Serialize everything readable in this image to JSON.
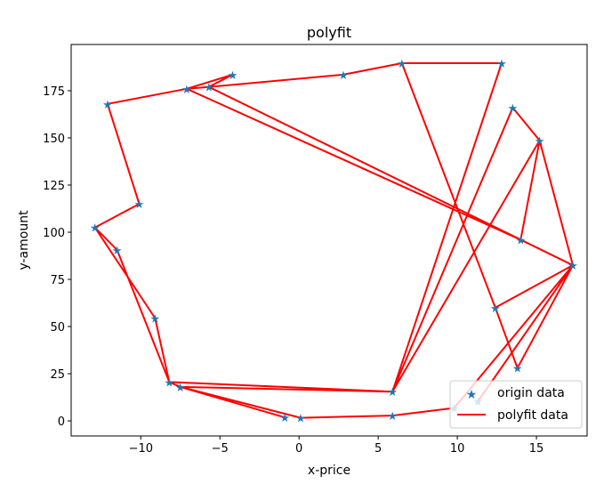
{
  "chart_data": {
    "type": "line",
    "title": "polyfit",
    "xlabel": "x-price",
    "ylabel": "y-amount",
    "xlim": [
      -14.4,
      18.2
    ],
    "ylim": [
      -8,
      199.5
    ],
    "xticks": [
      -10,
      -5,
      0,
      5,
      10,
      15
    ],
    "yticks": [
      0,
      25,
      50,
      75,
      100,
      125,
      150,
      175
    ],
    "xtick_labels": [
      "−10",
      "−5",
      "0",
      "5",
      "10",
      "15"
    ],
    "ytick_labels": [
      "0",
      "25",
      "50",
      "75",
      "100",
      "125",
      "150",
      "175"
    ],
    "grid": false,
    "legend": {
      "placement": "bottom-right",
      "entries": [
        "origin data",
        "polyfit data"
      ]
    },
    "colors": {
      "points": "#1f77b4",
      "line": "#ff0000"
    },
    "points": [
      [
        -12.9,
        102.5
      ],
      [
        -10.1,
        115
      ],
      [
        -12.1,
        168
      ],
      [
        -7.1,
        176
      ],
      [
        -4.2,
        183.5
      ],
      [
        -5.7,
        177
      ],
      [
        2.8,
        183.5
      ],
      [
        6.5,
        189.6
      ],
      [
        12.8,
        189.6
      ],
      [
        5.9,
        15.5
      ],
      [
        13.5,
        166
      ],
      [
        15.2,
        148.6
      ],
      [
        14,
        96
      ],
      [
        17.3,
        82.5
      ],
      [
        12.4,
        60
      ],
      [
        13.8,
        28
      ],
      [
        -11.5,
        90.6
      ],
      [
        -9.1,
        54.5
      ],
      [
        -8.2,
        20.6
      ],
      [
        -7.5,
        18
      ],
      [
        -0.9,
        1.8
      ],
      [
        0.1,
        1.6
      ],
      [
        5.9,
        2.8
      ],
      [
        9.8,
        6.8
      ],
      [
        11.3,
        10.3
      ]
    ],
    "line_path": [
      [
        -12.9,
        102.5
      ],
      [
        -10.1,
        115
      ],
      [
        -12.1,
        168
      ],
      [
        -7.1,
        176
      ],
      [
        -4.2,
        183.5
      ],
      [
        -5.7,
        177
      ],
      [
        2.8,
        183.5
      ],
      [
        6.5,
        189.6
      ],
      [
        12.8,
        189.6
      ],
      [
        5.9,
        15.5
      ],
      [
        13.5,
        166
      ],
      [
        15.2,
        148.6
      ],
      [
        5.9,
        15.5
      ],
      [
        -8.2,
        20.6
      ],
      [
        -9.1,
        54.5
      ],
      [
        -12.9,
        102.5
      ],
      [
        -11.5,
        90.6
      ],
      [
        -8.2,
        20.6
      ],
      [
        -7.5,
        18
      ],
      [
        5.9,
        15.5
      ],
      [
        -7.5,
        18
      ],
      [
        -0.9,
        1.8
      ],
      [
        -7.5,
        18
      ],
      [
        0.1,
        1.6
      ],
      [
        5.9,
        2.8
      ],
      [
        9.8,
        6.8
      ],
      [
        17.3,
        82.5
      ],
      [
        11.3,
        10.3
      ],
      [
        17.3,
        82.5
      ],
      [
        13.8,
        28
      ],
      [
        12.4,
        60
      ],
      [
        6.5,
        189.6
      ],
      [
        12.4,
        60
      ],
      [
        17.3,
        82.5
      ],
      [
        14,
        96
      ],
      [
        -7.1,
        176
      ],
      [
        -5.7,
        177
      ],
      [
        17.3,
        82.5
      ],
      [
        15.2,
        148.6
      ],
      [
        14,
        96
      ]
    ]
  }
}
